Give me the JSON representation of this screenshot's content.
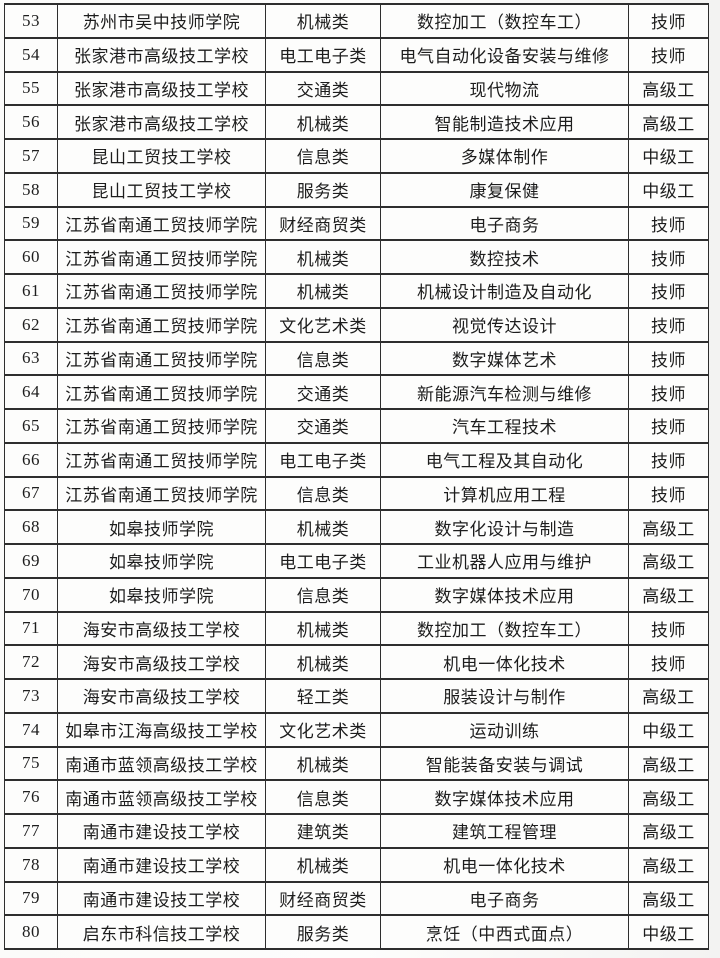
{
  "table": {
    "column_keys": [
      "index",
      "school",
      "category",
      "major",
      "level"
    ],
    "rows": [
      {
        "index": "53",
        "school": "苏州市吴中技师学院",
        "category": "机械类",
        "major": "数控加工（数控车工）",
        "level": "技师"
      },
      {
        "index": "54",
        "school": "张家港市高级技工学校",
        "category": "电工电子类",
        "major": "电气自动化设备安装与维修",
        "level": "技师"
      },
      {
        "index": "55",
        "school": "张家港市高级技工学校",
        "category": "交通类",
        "major": "现代物流",
        "level": "高级工"
      },
      {
        "index": "56",
        "school": "张家港市高级技工学校",
        "category": "机械类",
        "major": "智能制造技术应用",
        "level": "高级工"
      },
      {
        "index": "57",
        "school": "昆山工贸技工学校",
        "category": "信息类",
        "major": "多媒体制作",
        "level": "中级工"
      },
      {
        "index": "58",
        "school": "昆山工贸技工学校",
        "category": "服务类",
        "major": "康复保健",
        "level": "中级工"
      },
      {
        "index": "59",
        "school": "江苏省南通工贸技师学院",
        "category": "财经商贸类",
        "major": "电子商务",
        "level": "技师"
      },
      {
        "index": "60",
        "school": "江苏省南通工贸技师学院",
        "category": "机械类",
        "major": "数控技术",
        "level": "技师"
      },
      {
        "index": "61",
        "school": "江苏省南通工贸技师学院",
        "category": "机械类",
        "major": "机械设计制造及自动化",
        "level": "技师"
      },
      {
        "index": "62",
        "school": "江苏省南通工贸技师学院",
        "category": "文化艺术类",
        "major": "视觉传达设计",
        "level": "技师"
      },
      {
        "index": "63",
        "school": "江苏省南通工贸技师学院",
        "category": "信息类",
        "major": "数字媒体艺术",
        "level": "技师"
      },
      {
        "index": "64",
        "school": "江苏省南通工贸技师学院",
        "category": "交通类",
        "major": "新能源汽车检测与维修",
        "level": "技师"
      },
      {
        "index": "65",
        "school": "江苏省南通工贸技师学院",
        "category": "交通类",
        "major": "汽车工程技术",
        "level": "技师"
      },
      {
        "index": "66",
        "school": "江苏省南通工贸技师学院",
        "category": "电工电子类",
        "major": "电气工程及其自动化",
        "level": "技师"
      },
      {
        "index": "67",
        "school": "江苏省南通工贸技师学院",
        "category": "信息类",
        "major": "计算机应用工程",
        "level": "技师"
      },
      {
        "index": "68",
        "school": "如皋技师学院",
        "category": "机械类",
        "major": "数字化设计与制造",
        "level": "高级工"
      },
      {
        "index": "69",
        "school": "如皋技师学院",
        "category": "电工电子类",
        "major": "工业机器人应用与维护",
        "level": "高级工"
      },
      {
        "index": "70",
        "school": "如皋技师学院",
        "category": "信息类",
        "major": "数字媒体技术应用",
        "level": "高级工"
      },
      {
        "index": "71",
        "school": "海安市高级技工学校",
        "category": "机械类",
        "major": "数控加工（数控车工）",
        "level": "技师"
      },
      {
        "index": "72",
        "school": "海安市高级技工学校",
        "category": "机械类",
        "major": "机电一体化技术",
        "level": "技师"
      },
      {
        "index": "73",
        "school": "海安市高级技工学校",
        "category": "轻工类",
        "major": "服装设计与制作",
        "level": "高级工"
      },
      {
        "index": "74",
        "school": "如皋市江海高级技工学校",
        "category": "文化艺术类",
        "major": "运动训练",
        "level": "中级工"
      },
      {
        "index": "75",
        "school": "南通市蓝领高级技工学校",
        "category": "机械类",
        "major": "智能装备安装与调试",
        "level": "高级工"
      },
      {
        "index": "76",
        "school": "南通市蓝领高级技工学校",
        "category": "信息类",
        "major": "数字媒体技术应用",
        "level": "高级工"
      },
      {
        "index": "77",
        "school": "南通市建设技工学校",
        "category": "建筑类",
        "major": "建筑工程管理",
        "level": "高级工"
      },
      {
        "index": "78",
        "school": "南通市建设技工学校",
        "category": "机械类",
        "major": "机电一体化技术",
        "level": "高级工"
      },
      {
        "index": "79",
        "school": "南通市建设技工学校",
        "category": "财经商贸类",
        "major": "电子商务",
        "level": "高级工"
      },
      {
        "index": "80",
        "school": "启东市科信技工学校",
        "category": "服务类",
        "major": "烹饪（中西式面点）",
        "level": "中级工"
      }
    ],
    "colors": {
      "border": "#2e2e2e",
      "text": "#1d1d1d",
      "background": "#fdfdfc"
    }
  }
}
